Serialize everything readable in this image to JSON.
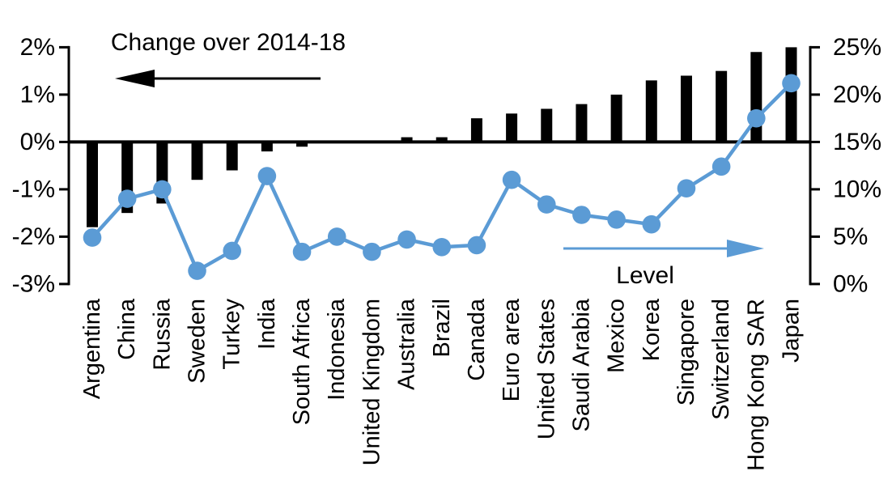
{
  "chart_data": {
    "type": "bar",
    "subtype": "combo-bar-line-dual-axis",
    "categories": [
      "Argentina",
      "China",
      "Russia",
      "Sweden",
      "Turkey",
      "India",
      "South Africa",
      "Indonesia",
      "United Kingdom",
      "Australia",
      "Brazil",
      "Canada",
      "Euro area",
      "United States",
      "Saudi Arabia",
      "Mexico",
      "Korea",
      "Singapore",
      "Switzerland",
      "Hong Kong SAR",
      "Japan"
    ],
    "series": [
      {
        "name": "Change over 2014-18",
        "type": "bar",
        "axis": "left",
        "color": "#000000",
        "values": [
          -1.8,
          -1.5,
          -1.3,
          -0.8,
          -0.6,
          -0.2,
          -0.1,
          0.0,
          0.0,
          0.1,
          0.1,
          0.5,
          0.6,
          0.7,
          0.8,
          1.0,
          1.3,
          1.4,
          1.5,
          1.9,
          2.0
        ]
      },
      {
        "name": "Level",
        "type": "line",
        "axis": "right",
        "color": "#5B9BD5",
        "values": [
          4.9,
          9.0,
          10.0,
          1.4,
          3.5,
          11.4,
          3.4,
          5.0,
          3.4,
          4.7,
          3.9,
          4.1,
          11.0,
          8.4,
          7.3,
          6.8,
          6.3,
          10.1,
          12.4,
          17.5,
          21.2
        ]
      }
    ],
    "left_axis": {
      "tick_labels": [
        "2%",
        "1%",
        "0%",
        "-1%",
        "-2%",
        "-3%"
      ],
      "tick_values": [
        2,
        1,
        0,
        -1,
        -2,
        -3
      ],
      "range": [
        -3,
        2
      ]
    },
    "right_axis": {
      "tick_labels": [
        "25%",
        "20%",
        "15%",
        "10%",
        "5%",
        "0%"
      ],
      "tick_values": [
        25,
        20,
        15,
        10,
        5,
        0
      ],
      "range": [
        0,
        25
      ]
    },
    "annotations": [
      {
        "text": "Change over 2014-18",
        "arrow": "left",
        "arrow_color": "#000000"
      },
      {
        "text": "Level",
        "arrow": "right",
        "arrow_color": "#5B9BD5"
      }
    ],
    "grid": false,
    "legend_position": "none",
    "x_labels_rotated_90": true
  },
  "colors": {
    "bar": "#000000",
    "line": "#5B9BD5",
    "text": "#000000",
    "background": "#FFFFFF"
  }
}
